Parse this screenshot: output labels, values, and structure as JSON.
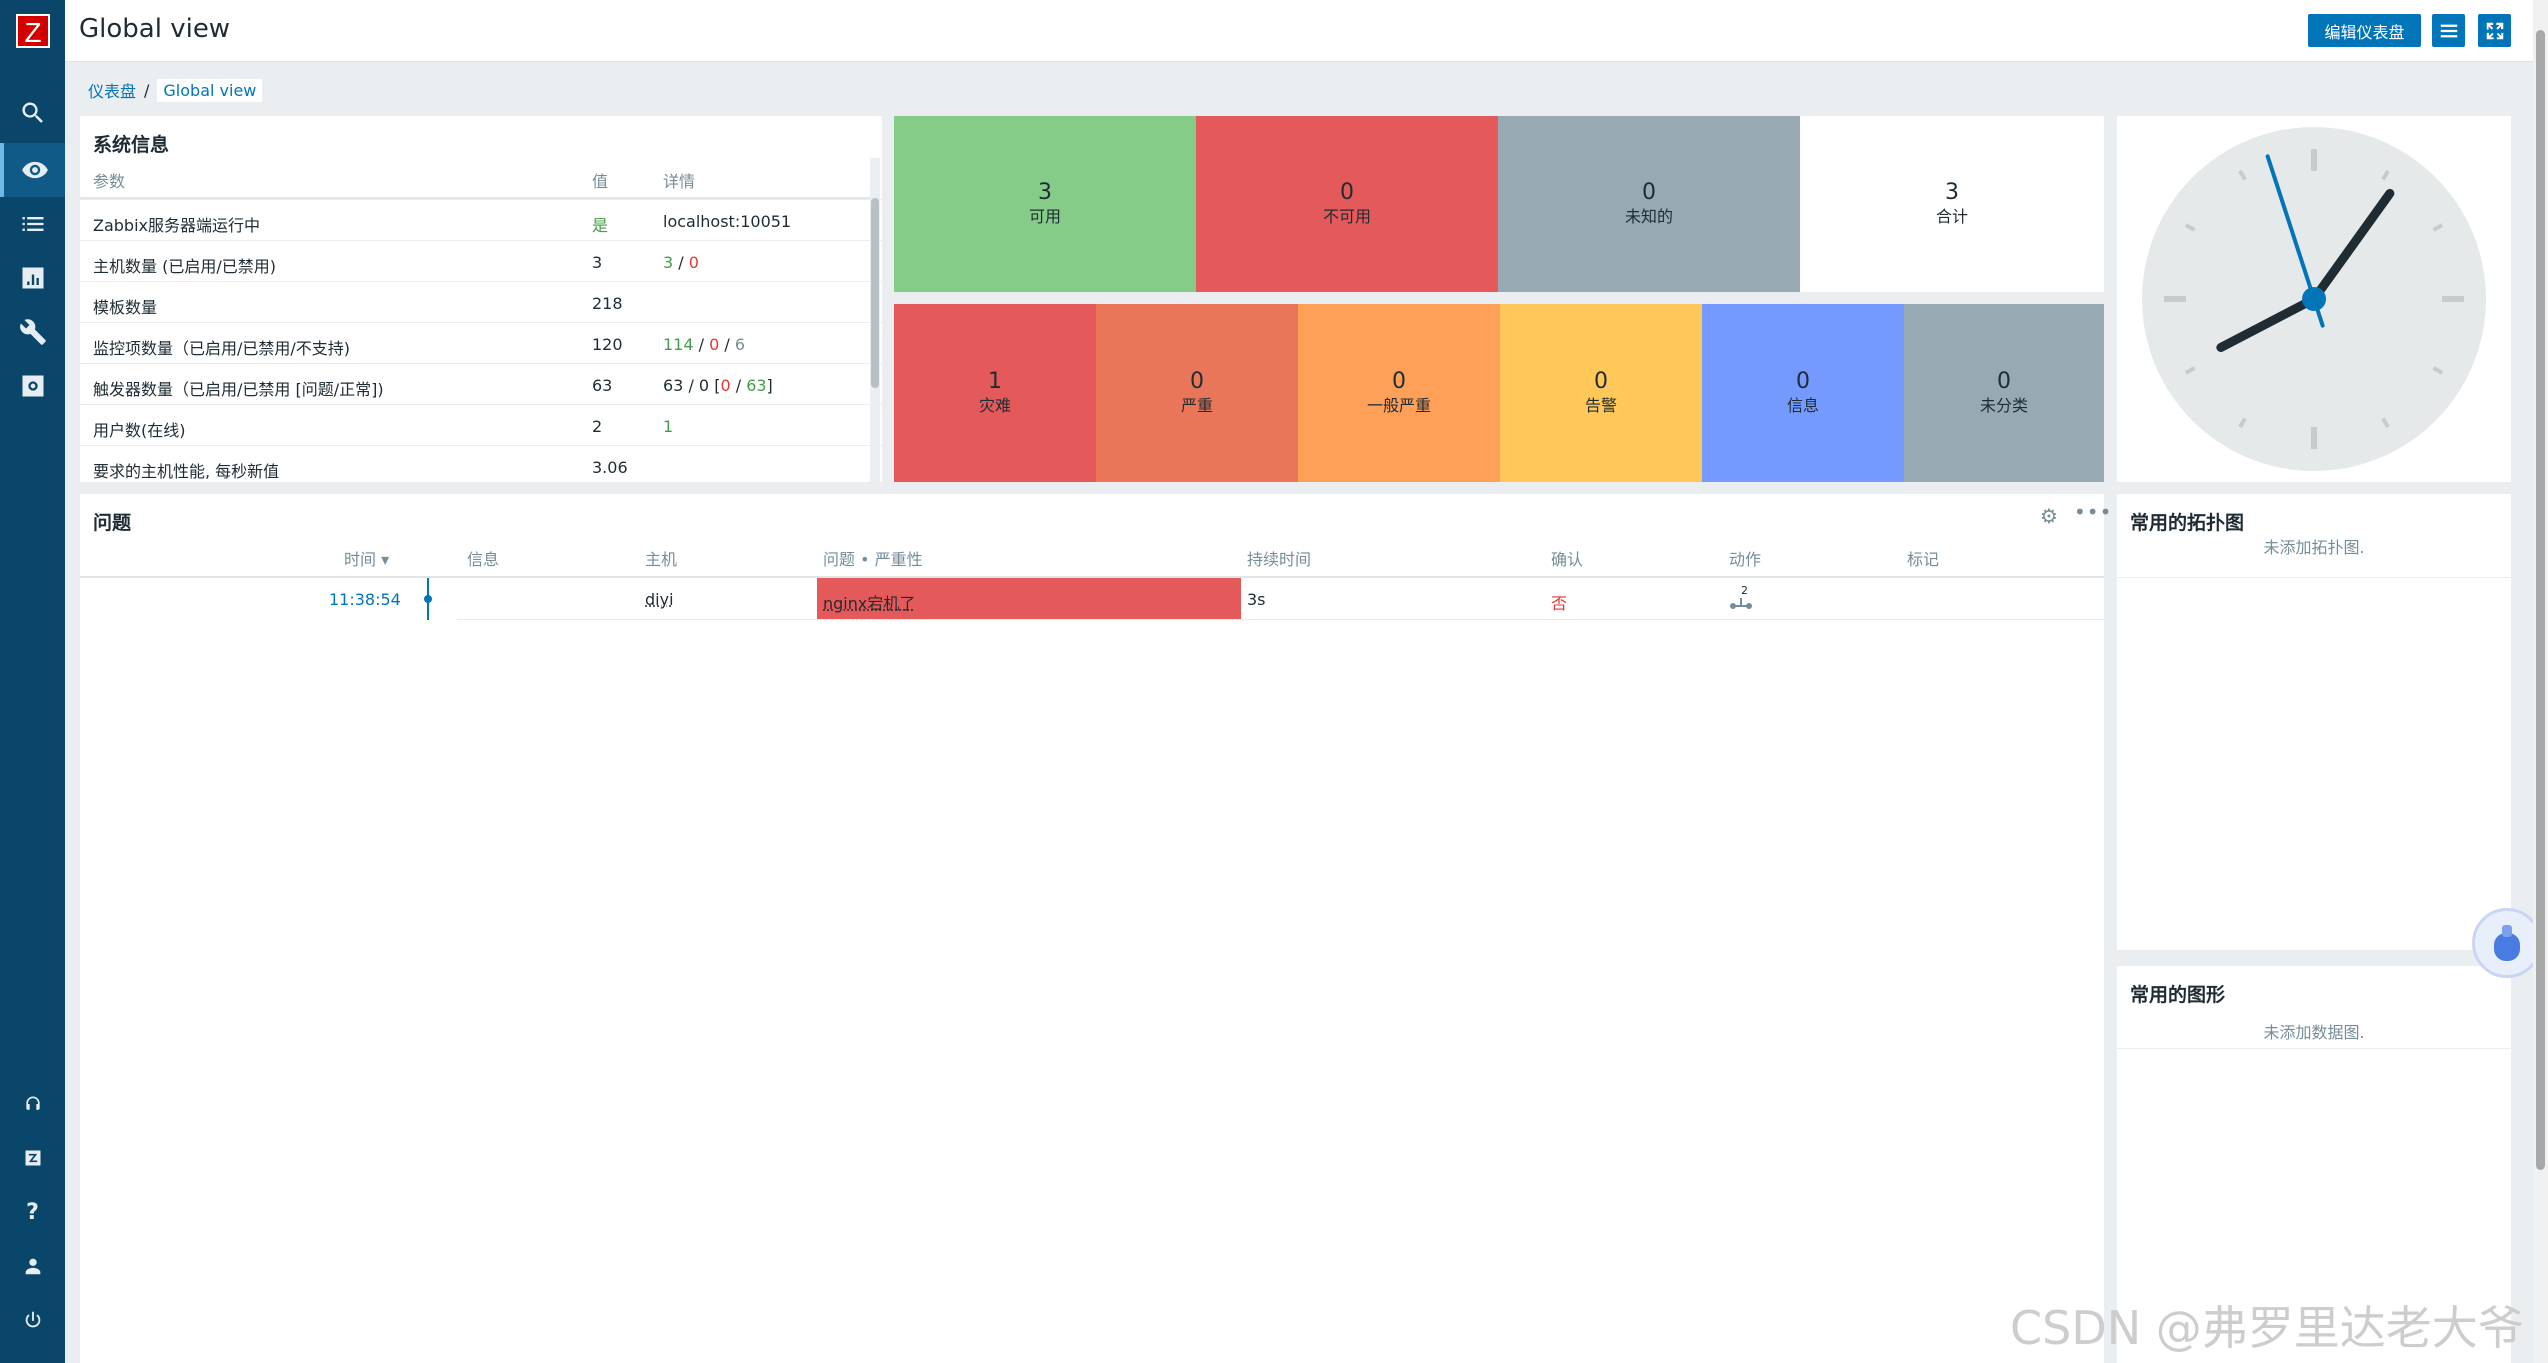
{
  "app": {
    "logo": "Z",
    "title": "Global view"
  },
  "header": {
    "edit_button": "编辑仪表盘"
  },
  "breadcrumb": {
    "root": "仪表盘",
    "sep": "/",
    "current": "Global view"
  },
  "sysinfo": {
    "title": "系统信息",
    "columns": [
      "参数",
      "值",
      "详情"
    ],
    "rows": [
      {
        "param": "Zabbix服务器端运行中",
        "value": "是",
        "detail": "localhost:10051"
      },
      {
        "param": "主机数量 (已启用/已禁用)",
        "value": "3",
        "d1": "3",
        "d2": "/",
        "d3": "0"
      },
      {
        "param": "模板数量",
        "value": "218"
      },
      {
        "param": "监控项数量（已启用/已禁用/不支持)",
        "value": "120",
        "d1": "114",
        "d2": " / ",
        "d3": "0",
        "d4": " / ",
        "d5": "6"
      },
      {
        "param": "触发器数量（已启用/已禁用 [问题/正常])",
        "value": "63",
        "d1": "63 / 0 [",
        "d2": "0",
        "d3": " / ",
        "d4": "63",
        "d5": "]"
      },
      {
        "param": "用户数(在线)",
        "value": "2",
        "d1": "1"
      },
      {
        "param": "要求的主机性能, 每秒新值",
        "value": "3.06"
      }
    ]
  },
  "host_availability": [
    {
      "num": "3",
      "label": "可用",
      "color": "#86cc89"
    },
    {
      "num": "0",
      "label": "不可用",
      "color": "#e45959"
    },
    {
      "num": "0",
      "label": "未知的",
      "color": "#97aab3"
    },
    {
      "num": "3",
      "label": "合计",
      "color": "#ffffff"
    }
  ],
  "severity": [
    {
      "num": "1",
      "label": "灾难",
      "color": "#e45959"
    },
    {
      "num": "0",
      "label": "严重",
      "color": "#e97659"
    },
    {
      "num": "0",
      "label": "一般严重",
      "color": "#ffa059"
    },
    {
      "num": "0",
      "label": "告警",
      "color": "#ffc859"
    },
    {
      "num": "0",
      "label": "信息",
      "color": "#7499ff"
    },
    {
      "num": "0",
      "label": "未分类",
      "color": "#97aab3"
    }
  ],
  "problems": {
    "title": "问题",
    "columns": {
      "time": "时间 ▾",
      "info": "信息",
      "host": "主机",
      "problem": "问题 • 严重性",
      "duration": "持续时间",
      "ack": "确认",
      "actions": "动作",
      "tags": "标记"
    },
    "row": {
      "time": "11:38:54",
      "host": "diyi",
      "problem": "nginx宕机了",
      "duration": "3s",
      "ack": "否",
      "actions_count": "2"
    }
  },
  "maps": {
    "title": "常用的拓扑图",
    "empty": "未添加拓扑图."
  },
  "graphs": {
    "title": "常用的图形",
    "empty": "未添加数据图."
  },
  "clock": {
    "hour": 8,
    "minute": 5,
    "second": 57
  },
  "watermark": "CSDN @弗罗里达老大爷"
}
